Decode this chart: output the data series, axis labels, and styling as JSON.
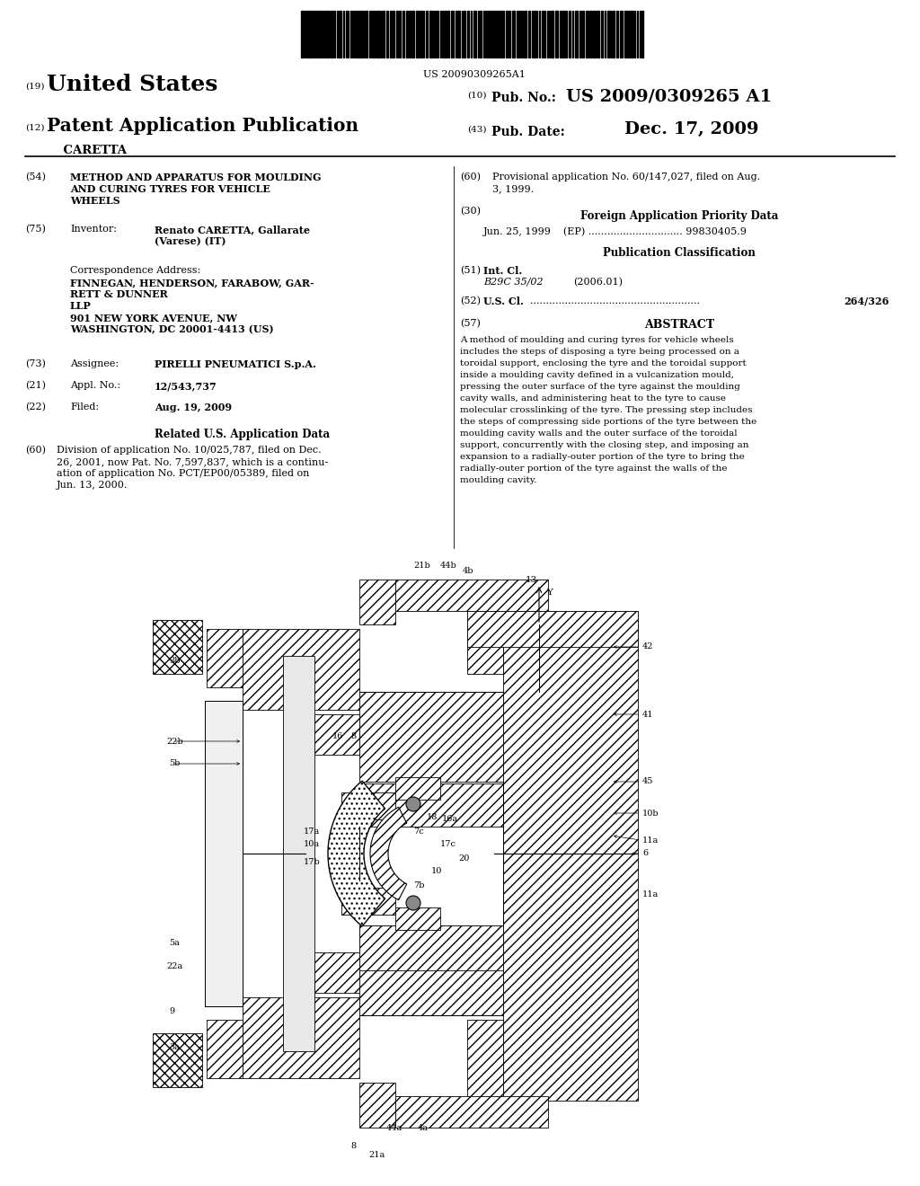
{
  "background_color": "#ffffff",
  "fig_width": 10.24,
  "fig_height": 13.2,
  "dpi": 100,
  "barcode_text": "US 20090309265A1",
  "country": "United States",
  "pub_type": "Patent Application Publication",
  "inventor_name": "    CARETTA",
  "pub_no_label": "Pub. No.:",
  "pub_no": "US 2009/0309265 A1",
  "pub_date_label": "Pub. Date:",
  "pub_date": "Dec. 17, 2009",
  "num19": "(19)",
  "num12": "(12)",
  "num10": "(10)",
  "num43": "(43)",
  "section54_num": "(54)",
  "section54_title_line1": "METHOD AND APPARATUS FOR MOULDING",
  "section54_title_line2": "AND CURING TYRES FOR VEHICLE",
  "section54_title_line3": "WHEELS",
  "section75_num": "(75)",
  "section75_label": "Inventor:",
  "section75_value_line1": "Renato CARETTA, Gallarate",
  "section75_value_line2": "(Varese) (IT)",
  "corr_label": "Correspondence Address:",
  "corr_line1": "FINNEGAN, HENDERSON, FARABOW, GAR-",
  "corr_line2": "RETT & DUNNER",
  "corr_line3": "LLP",
  "corr_line4": "901 NEW YORK AVENUE, NW",
  "corr_line5": "WASHINGTON, DC 20001-4413 (US)",
  "section73_num": "(73)",
  "section73_label": "Assignee:",
  "section73_value": "PIRELLI PNEUMATICI S.p.A.",
  "section21_num": "(21)",
  "section21_label": "Appl. No.:",
  "section21_value": "12/543,737",
  "section22_num": "(22)",
  "section22_label": "Filed:",
  "section22_value": "Aug. 19, 2009",
  "related_header": "Related U.S. Application Data",
  "section60_num": "(60)",
  "section60_line1": "Division of application No. 10/025,787, filed on Dec.",
  "section60_line2": "26, 2001, now Pat. No. 7,597,837, which is a continu-",
  "section60_line3": "ation of application No. PCT/EP00/05389, filed on",
  "section60_line4": "Jun. 13, 2000.",
  "section60b_num": "(60)",
  "section60b_line1": "Provisional application No. 60/147,027, filed on Aug.",
  "section60b_line2": "3, 1999.",
  "section30_header": "Foreign Application Priority Data",
  "section30_num": "(30)",
  "section30_value": "Jun. 25, 1999    (EP) .............................. 99830405.9",
  "pub_class_header": "Publication Classification",
  "section51_num": "(51)",
  "section51_label": "Int. Cl.",
  "section51_value": "B29C 35/02",
  "section51_year": "(2006.01)",
  "section52_num": "(52)",
  "section52_label": "U.S. Cl.",
  "section52_dots": "......................................................",
  "section52_value": "264/326",
  "section57_num": "(57)",
  "section57_header": "ABSTRACT",
  "abstract_line1": "A method of moulding and curing tyres for vehicle wheels",
  "abstract_line2": "includes the steps of disposing a tyre being processed on a",
  "abstract_line3": "toroidal support, enclosing the tyre and the toroidal support",
  "abstract_line4": "inside a moulding cavity defined in a vulcanization mould,",
  "abstract_line5": "pressing the outer surface of the tyre against the moulding",
  "abstract_line6": "cavity walls, and administering heat to the tyre to cause",
  "abstract_line7": "molecular crosslinking of the tyre. The pressing step includes",
  "abstract_line8": "the steps of compressing side portions of the tyre between the",
  "abstract_line9": "moulding cavity walls and the outer surface of the toroidal",
  "abstract_line10": "support, concurrently with the closing step, and imposing an",
  "abstract_line11": "expansion to a radially-outer portion of the tyre to bring the",
  "abstract_line12": "radially-outer portion of the tyre against the walls of the",
  "abstract_line13": "moulding cavity."
}
